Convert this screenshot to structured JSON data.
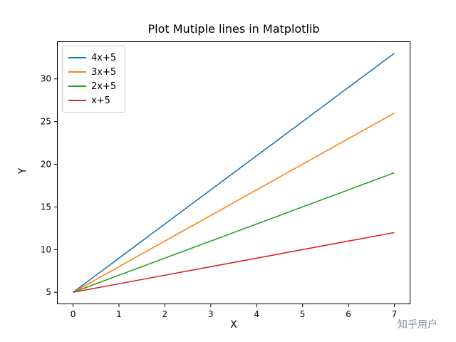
{
  "watermark": "知乎用户",
  "chart_data": {
    "type": "line",
    "title": "Plot Mutiple lines in Matplotlib",
    "xlabel": "X",
    "ylabel": "Y",
    "x": [
      0,
      1,
      2,
      3,
      4,
      5,
      6,
      7
    ],
    "series": [
      {
        "name": "4x+5",
        "color": "#1f77b4",
        "values": [
          5,
          9,
          13,
          17,
          21,
          25,
          29,
          33
        ]
      },
      {
        "name": "3x+5",
        "color": "#ff7f0e",
        "values": [
          5,
          8,
          11,
          14,
          17,
          20,
          23,
          26
        ]
      },
      {
        "name": "2x+5",
        "color": "#2ca02c",
        "values": [
          5,
          7,
          9,
          11,
          13,
          15,
          17,
          19
        ]
      },
      {
        "name": "x+5",
        "color": "#d62728",
        "values": [
          5,
          6,
          7,
          8,
          9,
          10,
          11,
          12
        ]
      }
    ],
    "xlim": [
      -0.35,
      7.35
    ],
    "ylim": [
      3.6,
      34.4
    ],
    "xticks": [
      0,
      1,
      2,
      3,
      4,
      5,
      6,
      7
    ],
    "yticks": [
      5,
      10,
      15,
      20,
      25,
      30
    ],
    "legend_position": "upper left",
    "grid": false
  }
}
